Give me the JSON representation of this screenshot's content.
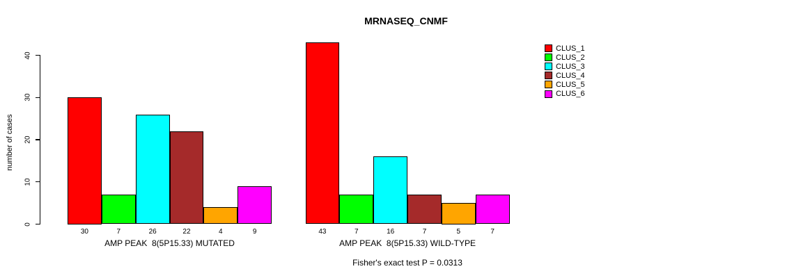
{
  "chart_data": {
    "type": "bar",
    "title": "MRNASEQ_CNMF",
    "subtitle": "Fisher's exact test P = 0.0313",
    "ylabel": "number of cases",
    "xlabel": "",
    "ylim": [
      0,
      43
    ],
    "yticks": [
      0,
      10,
      20,
      30,
      40
    ],
    "grid": "off",
    "legend_position": "right",
    "legend": [
      {
        "label": "CLUS_1",
        "color": "#FF0000"
      },
      {
        "label": "CLUS_2",
        "color": "#00FF00"
      },
      {
        "label": "CLUS_3",
        "color": "#00FFFF"
      },
      {
        "label": "CLUS_4",
        "color": "#A52A2A"
      },
      {
        "label": "CLUS_5",
        "color": "#FFA500"
      },
      {
        "label": "CLUS_6",
        "color": "#FF00FF"
      }
    ],
    "series_colors": [
      "#FF0000",
      "#00FF00",
      "#00FFFF",
      "#A52A2A",
      "#FFA500",
      "#FF00FF"
    ],
    "groups": [
      {
        "label": "AMP PEAK  8(5P15.33) MUTATED",
        "categories": [
          "CLUS_1",
          "CLUS_2",
          "CLUS_3",
          "CLUS_4",
          "CLUS_5",
          "CLUS_6"
        ],
        "values": [
          30,
          7,
          26,
          22,
          4,
          9
        ]
      },
      {
        "label": "AMP PEAK  8(5P15.33) WILD-TYPE",
        "categories": [
          "CLUS_1",
          "CLUS_2",
          "CLUS_3",
          "CLUS_4",
          "CLUS_5",
          "CLUS_6"
        ],
        "values": [
          43,
          7,
          16,
          7,
          5,
          7
        ]
      }
    ]
  }
}
